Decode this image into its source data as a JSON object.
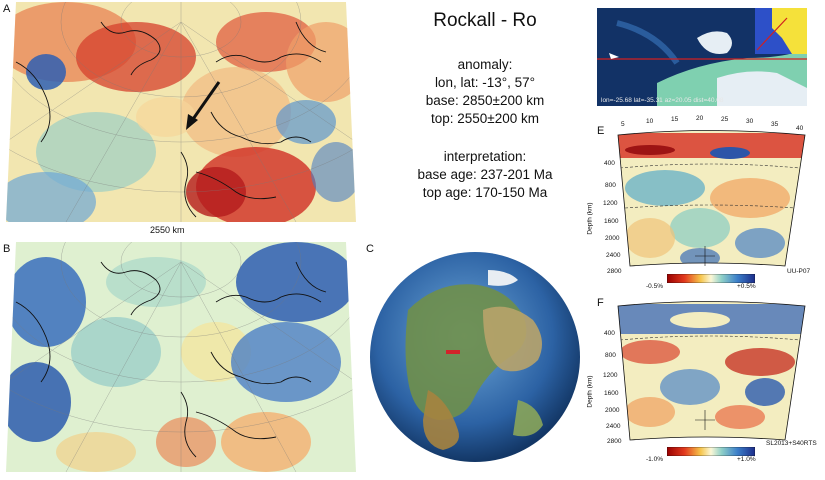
{
  "panels": {
    "a": "A",
    "b": "B",
    "c": "C",
    "e": "E",
    "f": "F"
  },
  "map_a": {
    "depth_label": "2550 km"
  },
  "title": "Rockall - Ro",
  "anomaly": {
    "heading": "anomaly:",
    "lonlat": "lon, lat: -13°, 57°",
    "base": "base: 2850±200 km",
    "top": "top: 2550±200 km"
  },
  "interpretation": {
    "heading": "interpretation:",
    "base_age": "base age: 237-201 Ma",
    "top_age": "top age: 170-150 Ma"
  },
  "inset": {
    "caption": "lon=-25.68 lat=-35.31 az=20.05 dist=40.08"
  },
  "section_e": {
    "distance_ticks": [
      "5",
      "10",
      "15",
      "20",
      "25",
      "30",
      "35",
      "40"
    ],
    "depth_ticks": [
      "400",
      "800",
      "1200",
      "1600",
      "2000",
      "2400",
      "2800"
    ],
    "depth_axis": "Depth (km)",
    "model": "UU-P07",
    "scale_min": "-0.5%",
    "scale_max": "+0.5%"
  },
  "section_f": {
    "depth_ticks": [
      "400",
      "800",
      "1200",
      "1600",
      "2000",
      "2400",
      "2800"
    ],
    "depth_axis": "Depth (km)",
    "model": "SL2013+S40RTS",
    "scale_min": "-1.0%",
    "scale_max": "+1.0%"
  },
  "colors": {
    "fast": "#2b5fb0",
    "slow": "#d0352a",
    "neutral": "#f4f1c2",
    "ocean": "#1e4f8f"
  }
}
